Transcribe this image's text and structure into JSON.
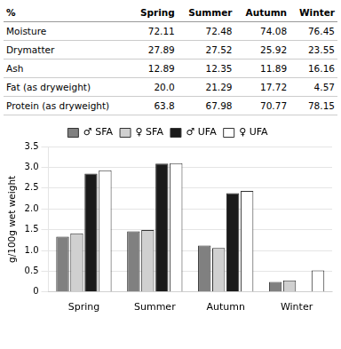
{
  "table": {
    "headers": [
      "%",
      "Spring",
      "Summer",
      "Autumn",
      "Winter"
    ],
    "rows": [
      [
        "Moisture",
        "72.11",
        "72.48",
        "74.08",
        "76.45"
      ],
      [
        "Drymatter",
        "27.89",
        "27.52",
        "25.92",
        "23.55"
      ],
      [
        "Ash",
        "12.89",
        "12.35",
        "11.89",
        "16.16"
      ],
      [
        "Fat (as dryweight)",
        "20.0",
        "21.29",
        "17.72",
        "4.57"
      ],
      [
        "Protein (as dryweight)",
        "63.8",
        "67.98",
        "70.77",
        "78.15"
      ]
    ]
  },
  "chart_data": {
    "type": "bar",
    "categories": [
      "Spring",
      "Summer",
      "Autumn",
      "Winter"
    ],
    "series": [
      {
        "name": "♂ SFA",
        "color": "#808080",
        "values": [
          1.33,
          1.46,
          1.12,
          0.24
        ]
      },
      {
        "name": "♀ SFA",
        "color": "#d0d0d0",
        "values": [
          1.41,
          1.49,
          1.06,
          0.28
        ]
      },
      {
        "name": "♂ UFA",
        "color": "#1a1a1a",
        "values": [
          2.85,
          3.09,
          2.38,
          0.0
        ]
      },
      {
        "name": "♀ UFA",
        "color": "#ffffff",
        "values": [
          2.93,
          3.1,
          2.43,
          0.52
        ]
      }
    ],
    "ylabel": "g/100g wet weight",
    "ylim": [
      0,
      3.5
    ],
    "yticks": [
      0,
      0.5,
      {
        "value": 1,
        "label": "1.0"
      },
      1.5,
      {
        "value": 2,
        "label": "2.0"
      },
      2.5,
      {
        "value": 3,
        "label": "3.0"
      },
      3.5
    ],
    "grid": true,
    "legend": "top"
  }
}
